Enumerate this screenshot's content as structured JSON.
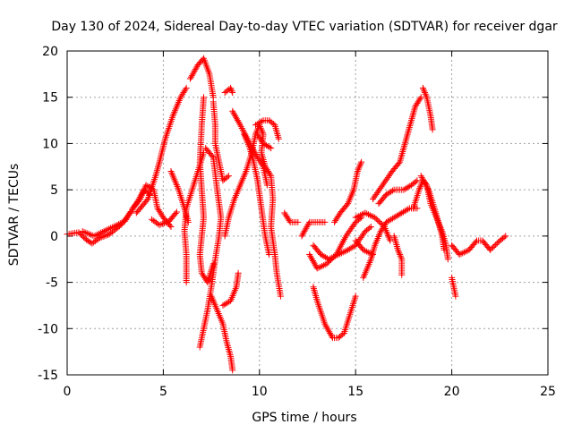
{
  "chart_data": {
    "type": "scatter",
    "title": "Day 130 of 2024, Sidereal Day-to-day VTEC variation (SDTVAR) for receiver dgar",
    "xlabel": "GPS time / hours",
    "ylabel": "SDTVAR / TECUs",
    "xlim": [
      0,
      25
    ],
    "ylim": [
      -15,
      20
    ],
    "x_ticks": [
      "0",
      "5",
      "10",
      "15",
      "20",
      "25"
    ],
    "y_ticks": [
      "-15",
      "-10",
      "-5",
      "0",
      "5",
      "10",
      "15",
      "20"
    ],
    "grid": true,
    "marker": "+",
    "color": "#ff0000",
    "tracks": [
      [
        [
          0.0,
          0.2
        ],
        [
          0.6,
          0.4
        ],
        [
          1.0,
          -0.4
        ],
        [
          1.3,
          -0.8
        ],
        [
          1.7,
          -0.2
        ],
        [
          2.2,
          0.2
        ],
        [
          2.8,
          1.2
        ],
        [
          3.2,
          2.3
        ],
        [
          3.6,
          3.5
        ],
        [
          4.0,
          5.0
        ],
        [
          4.3,
          4.5
        ]
      ],
      [
        [
          0.8,
          0.5
        ],
        [
          1.4,
          0.0
        ],
        [
          2.0,
          0.6
        ],
        [
          2.6,
          1.2
        ],
        [
          3.0,
          1.6
        ],
        [
          3.3,
          2.6
        ]
      ],
      [
        [
          3.4,
          3.0
        ],
        [
          3.8,
          4.0
        ],
        [
          4.1,
          5.5
        ],
        [
          4.5,
          5.0
        ],
        [
          4.7,
          3.0
        ],
        [
          5.0,
          2.0
        ],
        [
          5.4,
          1.0
        ]
      ],
      [
        [
          4.4,
          1.8
        ],
        [
          4.8,
          1.2
        ],
        [
          5.3,
          1.6
        ],
        [
          5.7,
          2.6
        ]
      ],
      [
        [
          3.6,
          2.5
        ],
        [
          4.2,
          4.0
        ],
        [
          4.6,
          6.5
        ],
        [
          4.8,
          8.0
        ],
        [
          5.1,
          10.5
        ],
        [
          5.5,
          13.0
        ],
        [
          5.9,
          15.0
        ],
        [
          6.2,
          16.0
        ]
      ],
      [
        [
          5.4,
          7.0
        ],
        [
          5.8,
          5.0
        ],
        [
          6.1,
          3.0
        ],
        [
          6.3,
          1.5
        ]
      ],
      [
        [
          6.2,
          -5.0
        ],
        [
          6.2,
          -2.0
        ],
        [
          6.1,
          0.5
        ],
        [
          6.2,
          3.0
        ],
        [
          6.5,
          5.0
        ],
        [
          6.8,
          7.0
        ],
        [
          7.1,
          9.0
        ]
      ],
      [
        [
          6.4,
          17.0
        ],
        [
          6.8,
          18.5
        ],
        [
          7.1,
          19.2
        ],
        [
          7.4,
          17.5
        ],
        [
          7.6,
          15.0
        ]
      ],
      [
        [
          7.1,
          15.0
        ],
        [
          7.0,
          12.0
        ],
        [
          6.9,
          8.0
        ],
        [
          7.0,
          5.0
        ],
        [
          7.1,
          2.0
        ],
        [
          7.0,
          0.0
        ],
        [
          6.9,
          -2.0
        ],
        [
          7.0,
          -4.0
        ],
        [
          7.3,
          -5.0
        ],
        [
          7.6,
          -3.0
        ]
      ],
      [
        [
          7.2,
          9.5
        ],
        [
          7.6,
          8.5
        ],
        [
          7.8,
          5.0
        ],
        [
          8.0,
          2.0
        ],
        [
          7.9,
          0.0
        ],
        [
          7.7,
          -2.5
        ],
        [
          7.5,
          -5.5
        ],
        [
          7.3,
          -8.0
        ],
        [
          7.1,
          -10.0
        ],
        [
          6.9,
          -12.0
        ]
      ],
      [
        [
          7.6,
          14.5
        ],
        [
          7.7,
          12.0
        ],
        [
          7.7,
          10.0
        ],
        [
          7.9,
          8.0
        ],
        [
          8.1,
          6.0
        ],
        [
          8.4,
          6.5
        ]
      ],
      [
        [
          7.5,
          -6.5
        ],
        [
          7.8,
          -8.0
        ],
        [
          8.1,
          -9.5
        ],
        [
          8.3,
          -11.5
        ],
        [
          8.5,
          -13.0
        ],
        [
          8.6,
          -14.5
        ]
      ],
      [
        [
          8.2,
          15.5
        ],
        [
          8.5,
          16.0
        ],
        [
          8.6,
          15.5
        ]
      ],
      [
        [
          8.1,
          -7.5
        ],
        [
          8.5,
          -7.0
        ],
        [
          8.8,
          -5.5
        ],
        [
          8.9,
          -4.0
        ]
      ],
      [
        [
          8.2,
          0.0
        ],
        [
          8.4,
          2.0
        ],
        [
          8.7,
          4.0
        ],
        [
          9.0,
          5.5
        ],
        [
          9.3,
          7.0
        ],
        [
          9.6,
          9.0
        ],
        [
          9.8,
          11.0
        ],
        [
          10.0,
          12.0
        ],
        [
          10.2,
          11.0
        ],
        [
          10.1,
          9.0
        ],
        [
          10.3,
          7.5
        ],
        [
          10.6,
          6.5
        ],
        [
          10.7,
          4.0
        ],
        [
          10.6,
          1.0
        ],
        [
          10.8,
          -2.0
        ],
        [
          10.9,
          -4.0
        ],
        [
          11.1,
          -6.5
        ]
      ],
      [
        [
          8.6,
          13.5
        ],
        [
          9.0,
          12.0
        ],
        [
          9.5,
          10.0
        ],
        [
          9.9,
          8.5
        ],
        [
          10.2,
          7.5
        ],
        [
          10.4,
          5.5
        ]
      ],
      [
        [
          9.2,
          11.0
        ],
        [
          9.5,
          9.5
        ],
        [
          9.7,
          8.0
        ],
        [
          9.9,
          6.0
        ],
        [
          10.1,
          3.0
        ],
        [
          10.3,
          0.0
        ],
        [
          10.5,
          -2.0
        ]
      ],
      [
        [
          9.8,
          12.0
        ],
        [
          10.2,
          12.5
        ],
        [
          10.5,
          12.5
        ],
        [
          10.8,
          12.0
        ],
        [
          11.0,
          10.5
        ]
      ],
      [
        [
          9.9,
          11.0
        ],
        [
          10.2,
          10.0
        ],
        [
          10.6,
          9.5
        ]
      ],
      [
        [
          11.3,
          2.5
        ],
        [
          11.6,
          1.5
        ],
        [
          12.0,
          1.5
        ]
      ],
      [
        [
          12.2,
          0.0
        ],
        [
          12.6,
          1.5
        ],
        [
          13.0,
          1.5
        ],
        [
          13.4,
          1.5
        ]
      ],
      [
        [
          12.8,
          -5.5
        ],
        [
          13.0,
          -7.0
        ],
        [
          13.4,
          -9.5
        ],
        [
          13.8,
          -11.0
        ],
        [
          14.1,
          -11.0
        ],
        [
          14.4,
          -10.5
        ],
        [
          14.7,
          -8.5
        ],
        [
          15.0,
          -6.5
        ]
      ],
      [
        [
          12.6,
          -2.0
        ],
        [
          13.0,
          -3.5
        ],
        [
          13.5,
          -3.0
        ],
        [
          14.0,
          -2.0
        ],
        [
          14.5,
          0.0
        ],
        [
          15.0,
          1.5
        ],
        [
          15.3,
          2.0
        ]
      ],
      [
        [
          12.8,
          -1.0
        ],
        [
          13.2,
          -2.0
        ],
        [
          13.6,
          -2.5
        ],
        [
          14.1,
          -2.0
        ],
        [
          14.6,
          -1.5
        ],
        [
          15.0,
          -1.0
        ],
        [
          15.5,
          0.5
        ],
        [
          15.8,
          1.0
        ]
      ],
      [
        [
          13.9,
          1.5
        ],
        [
          14.2,
          2.5
        ],
        [
          14.6,
          3.5
        ],
        [
          14.9,
          5.0
        ],
        [
          15.1,
          7.0
        ],
        [
          15.3,
          8.0
        ]
      ],
      [
        [
          15.0,
          2.0
        ],
        [
          15.5,
          2.5
        ],
        [
          16.0,
          2.0
        ],
        [
          16.5,
          1.0
        ],
        [
          16.8,
          -0.5
        ]
      ],
      [
        [
          15.0,
          -0.5
        ],
        [
          15.4,
          -1.5
        ],
        [
          15.9,
          -2.0
        ]
      ],
      [
        [
          15.4,
          -4.5
        ],
        [
          15.8,
          -2.5
        ],
        [
          16.0,
          -1.0
        ],
        [
          16.3,
          0.5
        ],
        [
          16.6,
          1.5
        ],
        [
          17.0,
          2.0
        ],
        [
          17.4,
          2.5
        ],
        [
          17.8,
          3.0
        ],
        [
          18.2,
          3.0
        ]
      ],
      [
        [
          15.9,
          4.0
        ],
        [
          16.4,
          5.5
        ],
        [
          16.9,
          7.0
        ],
        [
          17.3,
          8.0
        ],
        [
          17.5,
          9.5
        ],
        [
          17.7,
          11.0
        ],
        [
          17.9,
          12.5
        ],
        [
          18.1,
          14.0
        ],
        [
          18.4,
          15.0
        ]
      ],
      [
        [
          16.2,
          3.5
        ],
        [
          16.6,
          4.5
        ],
        [
          17.0,
          5.0
        ],
        [
          17.5,
          5.0
        ],
        [
          17.9,
          5.5
        ],
        [
          18.2,
          6.0
        ]
      ],
      [
        [
          17.0,
          0.0
        ],
        [
          17.2,
          -1.5
        ],
        [
          17.4,
          -2.5
        ],
        [
          17.4,
          -4.2
        ]
      ],
      [
        [
          18.0,
          3.0
        ],
        [
          18.3,
          5.0
        ],
        [
          18.5,
          6.0
        ],
        [
          18.7,
          5.5
        ],
        [
          18.9,
          3.5
        ],
        [
          19.2,
          2.0
        ],
        [
          19.5,
          0.5
        ],
        [
          19.7,
          -1.0
        ],
        [
          19.8,
          -2.5
        ]
      ],
      [
        [
          18.4,
          6.5
        ],
        [
          18.8,
          5.0
        ],
        [
          19.1,
          3.0
        ],
        [
          19.3,
          1.5
        ],
        [
          19.5,
          0.0
        ],
        [
          19.6,
          -1.5
        ]
      ],
      [
        [
          18.5,
          16.0
        ],
        [
          18.7,
          15.0
        ],
        [
          18.9,
          13.0
        ],
        [
          19.0,
          11.5
        ]
      ],
      [
        [
          20.0,
          -4.5
        ],
        [
          20.2,
          -6.5
        ]
      ],
      [
        [
          20.0,
          -1.0
        ],
        [
          20.4,
          -2.0
        ],
        [
          20.9,
          -1.5
        ],
        [
          21.3,
          -0.5
        ],
        [
          21.6,
          -0.5
        ],
        [
          22.0,
          -1.5
        ],
        [
          22.5,
          -0.5
        ],
        [
          22.8,
          0.0
        ]
      ]
    ]
  }
}
